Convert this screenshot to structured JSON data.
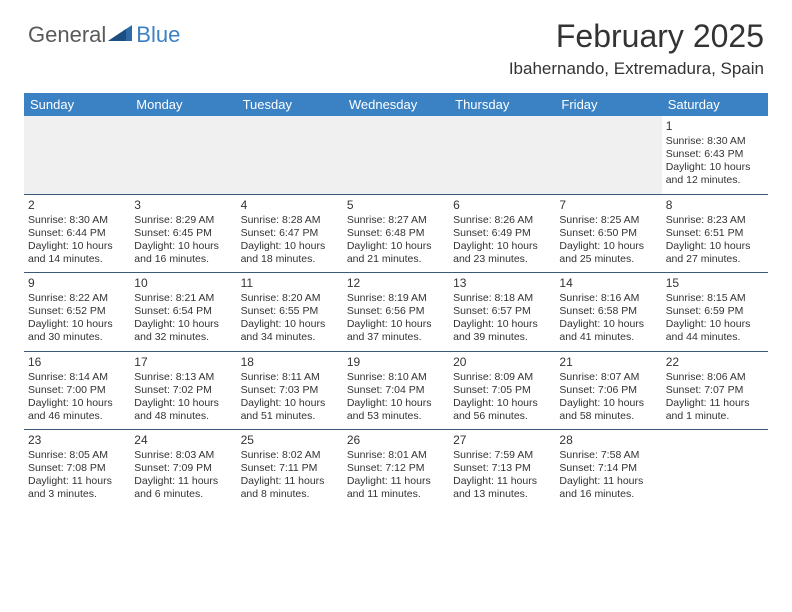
{
  "logo": {
    "general": "General",
    "blue": "Blue"
  },
  "header": {
    "title": "February 2025",
    "location": "Ibahernando, Extremadura, Spain"
  },
  "colors": {
    "header_bg": "#3b82c4",
    "header_fg": "#ffffff",
    "row_divider": "#3b5a7a",
    "blank_bg": "#f0f0f0",
    "text": "#333333",
    "logo_gray": "#5a5a5a",
    "logo_blue": "#3b82c4"
  },
  "weekdays": [
    "Sunday",
    "Monday",
    "Tuesday",
    "Wednesday",
    "Thursday",
    "Friday",
    "Saturday"
  ],
  "weeks": [
    [
      null,
      null,
      null,
      null,
      null,
      null,
      {
        "n": "1",
        "sr": "Sunrise: 8:30 AM",
        "ss": "Sunset: 6:43 PM",
        "d1": "Daylight: 10 hours",
        "d2": "and 12 minutes."
      }
    ],
    [
      {
        "n": "2",
        "sr": "Sunrise: 8:30 AM",
        "ss": "Sunset: 6:44 PM",
        "d1": "Daylight: 10 hours",
        "d2": "and 14 minutes."
      },
      {
        "n": "3",
        "sr": "Sunrise: 8:29 AM",
        "ss": "Sunset: 6:45 PM",
        "d1": "Daylight: 10 hours",
        "d2": "and 16 minutes."
      },
      {
        "n": "4",
        "sr": "Sunrise: 8:28 AM",
        "ss": "Sunset: 6:47 PM",
        "d1": "Daylight: 10 hours",
        "d2": "and 18 minutes."
      },
      {
        "n": "5",
        "sr": "Sunrise: 8:27 AM",
        "ss": "Sunset: 6:48 PM",
        "d1": "Daylight: 10 hours",
        "d2": "and 21 minutes."
      },
      {
        "n": "6",
        "sr": "Sunrise: 8:26 AM",
        "ss": "Sunset: 6:49 PM",
        "d1": "Daylight: 10 hours",
        "d2": "and 23 minutes."
      },
      {
        "n": "7",
        "sr": "Sunrise: 8:25 AM",
        "ss": "Sunset: 6:50 PM",
        "d1": "Daylight: 10 hours",
        "d2": "and 25 minutes."
      },
      {
        "n": "8",
        "sr": "Sunrise: 8:23 AM",
        "ss": "Sunset: 6:51 PM",
        "d1": "Daylight: 10 hours",
        "d2": "and 27 minutes."
      }
    ],
    [
      {
        "n": "9",
        "sr": "Sunrise: 8:22 AM",
        "ss": "Sunset: 6:52 PM",
        "d1": "Daylight: 10 hours",
        "d2": "and 30 minutes."
      },
      {
        "n": "10",
        "sr": "Sunrise: 8:21 AM",
        "ss": "Sunset: 6:54 PM",
        "d1": "Daylight: 10 hours",
        "d2": "and 32 minutes."
      },
      {
        "n": "11",
        "sr": "Sunrise: 8:20 AM",
        "ss": "Sunset: 6:55 PM",
        "d1": "Daylight: 10 hours",
        "d2": "and 34 minutes."
      },
      {
        "n": "12",
        "sr": "Sunrise: 8:19 AM",
        "ss": "Sunset: 6:56 PM",
        "d1": "Daylight: 10 hours",
        "d2": "and 37 minutes."
      },
      {
        "n": "13",
        "sr": "Sunrise: 8:18 AM",
        "ss": "Sunset: 6:57 PM",
        "d1": "Daylight: 10 hours",
        "d2": "and 39 minutes."
      },
      {
        "n": "14",
        "sr": "Sunrise: 8:16 AM",
        "ss": "Sunset: 6:58 PM",
        "d1": "Daylight: 10 hours",
        "d2": "and 41 minutes."
      },
      {
        "n": "15",
        "sr": "Sunrise: 8:15 AM",
        "ss": "Sunset: 6:59 PM",
        "d1": "Daylight: 10 hours",
        "d2": "and 44 minutes."
      }
    ],
    [
      {
        "n": "16",
        "sr": "Sunrise: 8:14 AM",
        "ss": "Sunset: 7:00 PM",
        "d1": "Daylight: 10 hours",
        "d2": "and 46 minutes."
      },
      {
        "n": "17",
        "sr": "Sunrise: 8:13 AM",
        "ss": "Sunset: 7:02 PM",
        "d1": "Daylight: 10 hours",
        "d2": "and 48 minutes."
      },
      {
        "n": "18",
        "sr": "Sunrise: 8:11 AM",
        "ss": "Sunset: 7:03 PM",
        "d1": "Daylight: 10 hours",
        "d2": "and 51 minutes."
      },
      {
        "n": "19",
        "sr": "Sunrise: 8:10 AM",
        "ss": "Sunset: 7:04 PM",
        "d1": "Daylight: 10 hours",
        "d2": "and 53 minutes."
      },
      {
        "n": "20",
        "sr": "Sunrise: 8:09 AM",
        "ss": "Sunset: 7:05 PM",
        "d1": "Daylight: 10 hours",
        "d2": "and 56 minutes."
      },
      {
        "n": "21",
        "sr": "Sunrise: 8:07 AM",
        "ss": "Sunset: 7:06 PM",
        "d1": "Daylight: 10 hours",
        "d2": "and 58 minutes."
      },
      {
        "n": "22",
        "sr": "Sunrise: 8:06 AM",
        "ss": "Sunset: 7:07 PM",
        "d1": "Daylight: 11 hours",
        "d2": "and 1 minute."
      }
    ],
    [
      {
        "n": "23",
        "sr": "Sunrise: 8:05 AM",
        "ss": "Sunset: 7:08 PM",
        "d1": "Daylight: 11 hours",
        "d2": "and 3 minutes."
      },
      {
        "n": "24",
        "sr": "Sunrise: 8:03 AM",
        "ss": "Sunset: 7:09 PM",
        "d1": "Daylight: 11 hours",
        "d2": "and 6 minutes."
      },
      {
        "n": "25",
        "sr": "Sunrise: 8:02 AM",
        "ss": "Sunset: 7:11 PM",
        "d1": "Daylight: 11 hours",
        "d2": "and 8 minutes."
      },
      {
        "n": "26",
        "sr": "Sunrise: 8:01 AM",
        "ss": "Sunset: 7:12 PM",
        "d1": "Daylight: 11 hours",
        "d2": "and 11 minutes."
      },
      {
        "n": "27",
        "sr": "Sunrise: 7:59 AM",
        "ss": "Sunset: 7:13 PM",
        "d1": "Daylight: 11 hours",
        "d2": "and 13 minutes."
      },
      {
        "n": "28",
        "sr": "Sunrise: 7:58 AM",
        "ss": "Sunset: 7:14 PM",
        "d1": "Daylight: 11 hours",
        "d2": "and 16 minutes."
      },
      null
    ]
  ]
}
